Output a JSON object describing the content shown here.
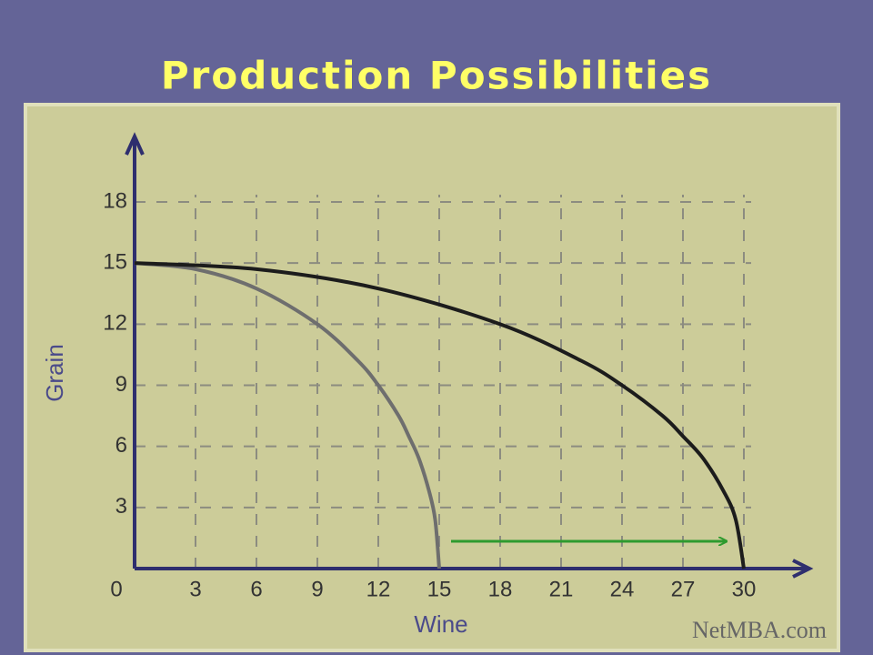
{
  "chart_data": {
    "type": "line",
    "title": "Production Possibilities",
    "x_label": "Wine",
    "y_label": "Grain",
    "watermark": "NetMBA.com",
    "xlim": [
      0,
      30
    ],
    "ylim": [
      0,
      18
    ],
    "xticks": [
      0,
      3,
      6,
      9,
      12,
      15,
      18,
      21,
      24,
      27,
      30
    ],
    "yticks": [
      3,
      6,
      9,
      12,
      15,
      18
    ],
    "grid": true,
    "series": [
      {
        "color": "#6e6e6e",
        "x": [
          0,
          3,
          6,
          9,
          11,
          12,
          13,
          13.5,
          14,
          14.5,
          14.8,
          15
        ],
        "values": [
          15,
          14.7,
          13.75,
          12,
          10.2,
          9,
          7.5,
          6.5,
          5.4,
          3.8,
          2.4,
          0
        ]
      },
      {
        "color": "#1c1c1c",
        "x": [
          0,
          6,
          12,
          18,
          22,
          24,
          26,
          27,
          28,
          29,
          29.6,
          30
        ],
        "values": [
          15,
          14.7,
          13.75,
          12,
          10.2,
          9,
          7.5,
          6.5,
          5.4,
          3.8,
          2.4,
          0
        ]
      }
    ]
  }
}
